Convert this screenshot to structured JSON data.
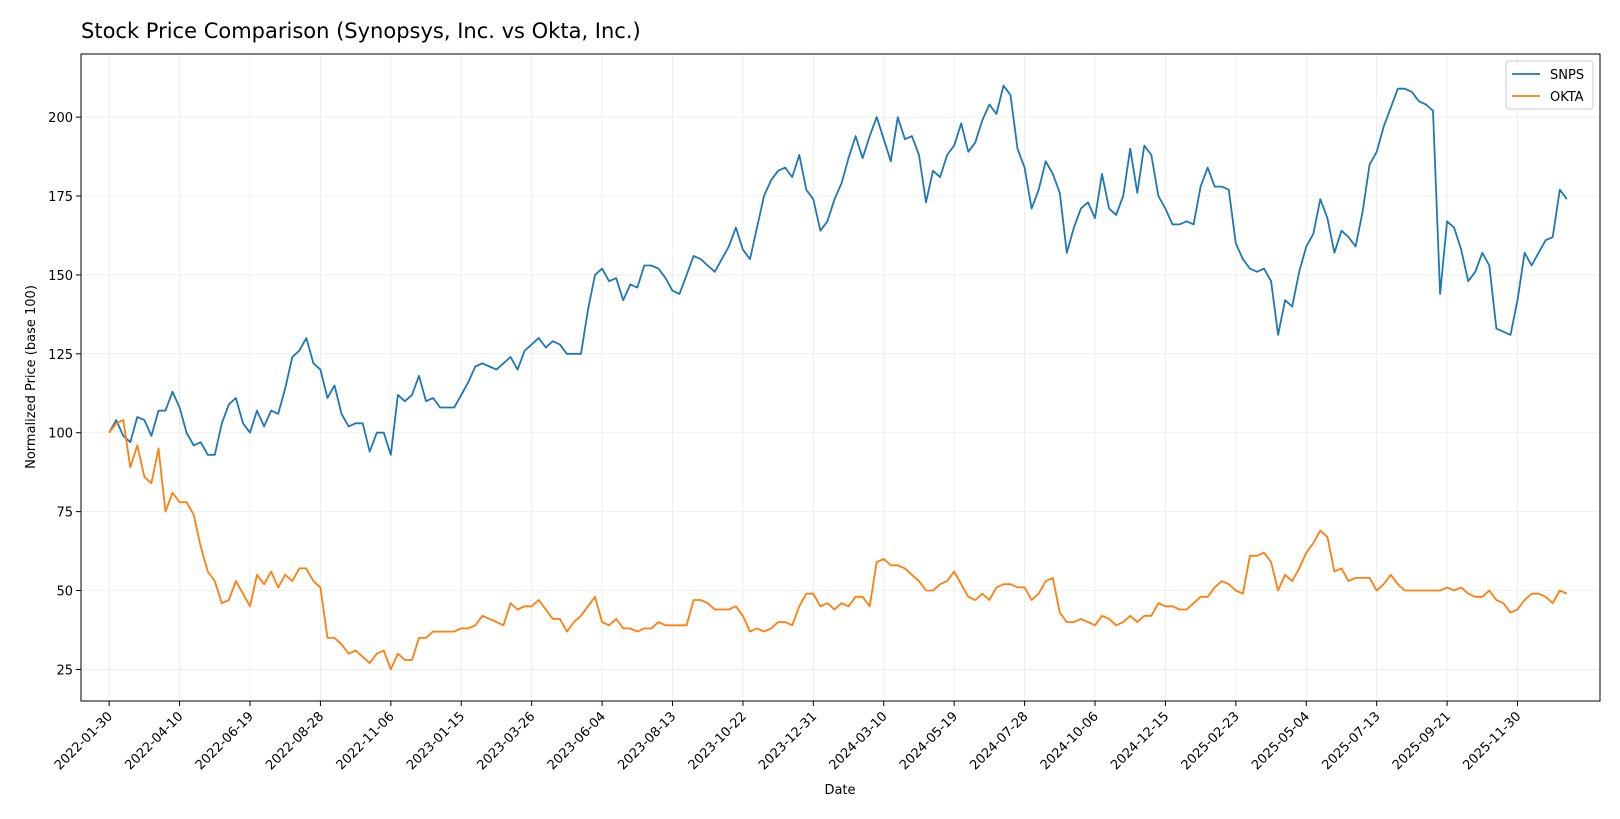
{
  "chart_data": {
    "type": "line",
    "title": "Stock Price Comparison (Synopsys, Inc. vs Okta, Inc.)",
    "xlabel": "Date",
    "ylabel": "Normalized Price (base 100)",
    "ylim": [
      15,
      220
    ],
    "yticks": [
      25,
      50,
      75,
      100,
      125,
      150,
      175,
      200
    ],
    "xlim": [
      "2022-01-02",
      "2026-02-20"
    ],
    "xticks": [
      "2022-01-30",
      "2022-04-10",
      "2022-06-19",
      "2022-08-28",
      "2022-11-06",
      "2023-01-15",
      "2023-03-26",
      "2023-06-04",
      "2023-08-13",
      "2023-10-22",
      "2023-12-31",
      "2024-03-10",
      "2024-05-19",
      "2024-07-28",
      "2024-10-06",
      "2024-12-15",
      "2025-02-23",
      "2025-05-04",
      "2025-07-13",
      "2025-09-21",
      "2025-11-30"
    ],
    "grid": true,
    "legend_position": "top-right",
    "x_start": "2022-01-30",
    "x_step_days": 7,
    "series": [
      {
        "name": "SNPS",
        "color": "#1f77b4",
        "values": [
          100,
          104,
          99,
          97,
          105,
          104,
          99,
          107,
          107,
          113,
          108,
          100,
          96,
          97,
          93,
          93,
          103,
          109,
          111,
          103,
          100,
          107,
          102,
          107,
          106,
          114,
          124,
          126,
          130,
          122,
          120,
          111,
          115,
          106,
          102,
          103,
          103,
          94,
          100,
          100,
          93,
          112,
          110,
          112,
          118,
          110,
          111,
          108,
          108,
          108,
          112,
          116,
          121,
          122,
          121,
          120,
          122,
          124,
          120,
          126,
          128,
          130,
          127,
          129,
          128,
          125,
          125,
          125,
          139,
          150,
          152,
          148,
          149,
          142,
          147,
          146,
          153,
          153,
          152,
          149,
          145,
          144,
          150,
          156,
          155,
          153,
          151,
          155,
          159,
          165,
          158,
          155,
          165,
          175,
          180,
          183,
          184,
          181,
          188,
          177,
          174,
          164,
          167,
          174,
          179,
          187,
          194,
          187,
          194,
          200,
          193,
          186,
          200,
          193,
          194,
          188,
          173,
          183,
          181,
          188,
          191,
          198,
          189,
          192,
          199,
          204,
          201,
          210,
          207,
          190,
          184,
          171,
          177,
          186,
          182,
          176,
          157,
          165,
          171,
          173,
          168,
          182,
          171,
          169,
          175,
          190,
          176,
          191,
          188,
          175,
          171,
          166,
          166,
          167,
          166,
          178,
          184,
          178,
          178,
          177,
          160,
          155,
          152,
          151,
          152,
          148,
          131,
          142,
          140,
          151,
          159,
          163,
          174,
          168,
          157,
          164,
          162,
          159,
          170,
          185,
          189,
          197,
          203,
          209,
          209,
          208,
          205,
          204,
          202,
          144,
          167,
          165,
          158,
          148,
          151,
          157,
          153,
          133,
          132,
          131,
          142,
          157,
          153,
          157,
          161,
          162,
          177,
          174
        ]
      },
      {
        "name": "OKTA",
        "color": "#ff7f0e",
        "values": [
          100,
          103,
          104,
          89,
          96,
          86,
          84,
          95,
          75,
          81,
          78,
          78,
          74,
          64,
          56,
          53,
          46,
          47,
          53,
          49,
          45,
          55,
          52,
          56,
          51,
          55,
          53,
          57,
          57,
          53,
          51,
          35,
          35,
          33,
          30,
          31,
          29,
          27,
          30,
          31,
          25,
          30,
          28,
          28,
          35,
          35,
          37,
          37,
          37,
          37,
          38,
          38,
          39,
          42,
          41,
          40,
          39,
          46,
          44,
          45,
          45,
          47,
          44,
          41,
          41,
          37,
          40,
          42,
          45,
          48,
          40,
          39,
          41,
          38,
          38,
          37,
          38,
          38,
          40,
          39,
          39,
          39,
          39,
          47,
          47,
          46,
          44,
          44,
          44,
          45,
          42,
          37,
          38,
          37,
          38,
          40,
          40,
          39,
          45,
          49,
          49,
          45,
          46,
          44,
          46,
          45,
          48,
          48,
          45,
          59,
          60,
          58,
          58,
          57,
          55,
          53,
          50,
          50,
          52,
          53,
          56,
          52,
          48,
          47,
          49,
          47,
          51,
          52,
          52,
          51,
          51,
          47,
          49,
          53,
          54,
          43,
          40,
          40,
          41,
          40,
          39,
          42,
          41,
          39,
          40,
          42,
          40,
          42,
          42,
          46,
          45,
          45,
          44,
          44,
          46,
          48,
          48,
          51,
          53,
          52,
          50,
          49,
          61,
          61,
          62,
          59,
          50,
          55,
          53,
          57,
          62,
          65,
          69,
          67,
          56,
          57,
          53,
          54,
          54,
          54,
          50,
          52,
          55,
          52,
          50,
          50,
          50,
          50,
          50,
          50,
          51,
          50,
          51,
          49,
          48,
          48,
          50,
          47,
          46,
          43,
          44,
          47,
          49,
          49,
          48,
          46,
          50,
          49
        ]
      }
    ]
  }
}
